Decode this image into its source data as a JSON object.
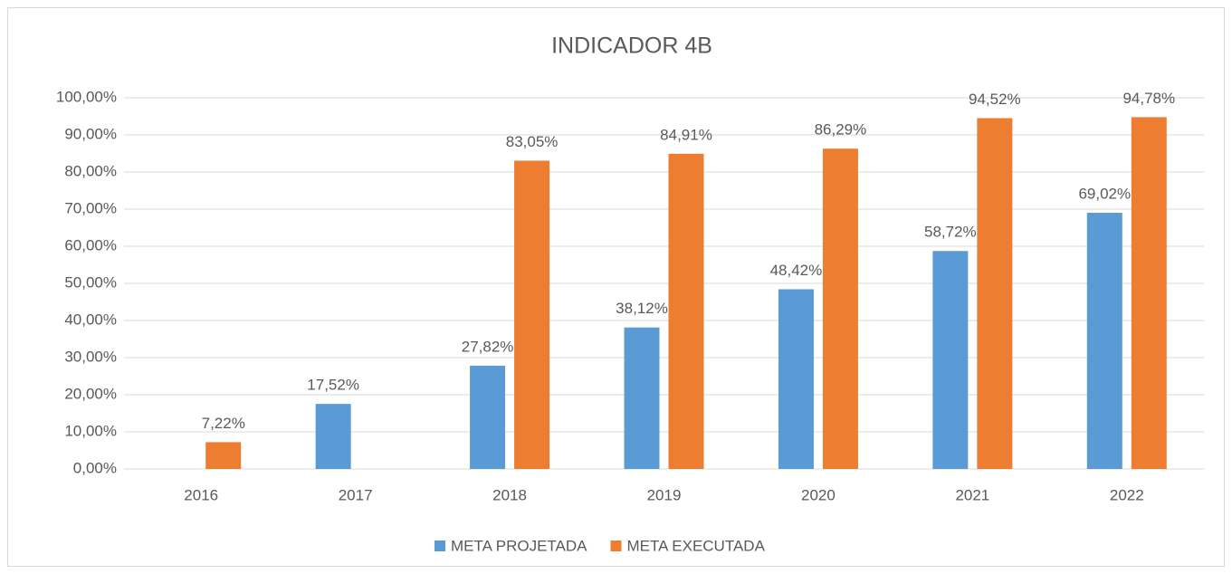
{
  "chart_data": {
    "type": "bar",
    "title": "INDICADOR 4B",
    "categories": [
      "2016",
      "2017",
      "2018",
      "2019",
      "2020",
      "2021",
      "2022"
    ],
    "series": [
      {
        "name": "META PROJETADA",
        "color": "#5b9bd5",
        "values": [
          null,
          17.52,
          27.82,
          38.12,
          48.42,
          58.72,
          69.02
        ],
        "value_labels": [
          null,
          "17,52%",
          "27,82%",
          "38,12%",
          "48,42%",
          "58,72%",
          "69,02%"
        ]
      },
      {
        "name": "META EXECUTADA",
        "color": "#ed7d31",
        "values": [
          7.22,
          null,
          83.05,
          84.91,
          86.29,
          94.52,
          94.78
        ],
        "value_labels": [
          "7,22%",
          null,
          "83,05%",
          "84,91%",
          "86,29%",
          "94,52%",
          "94,78%"
        ]
      }
    ],
    "ylim": [
      0,
      100
    ],
    "yticks": [
      {
        "value": 0,
        "label": "0,00%"
      },
      {
        "value": 10,
        "label": "10,00%"
      },
      {
        "value": 20,
        "label": "20,00%"
      },
      {
        "value": 30,
        "label": "30,00%"
      },
      {
        "value": 40,
        "label": "40,00%"
      },
      {
        "value": 50,
        "label": "50,00%"
      },
      {
        "value": 60,
        "label": "60,00%"
      },
      {
        "value": 70,
        "label": "70,00%"
      },
      {
        "value": 80,
        "label": "80,00%"
      },
      {
        "value": 90,
        "label": "90,00%"
      },
      {
        "value": 100,
        "label": "100,00%"
      }
    ],
    "grid": true,
    "legend": "bottom"
  }
}
